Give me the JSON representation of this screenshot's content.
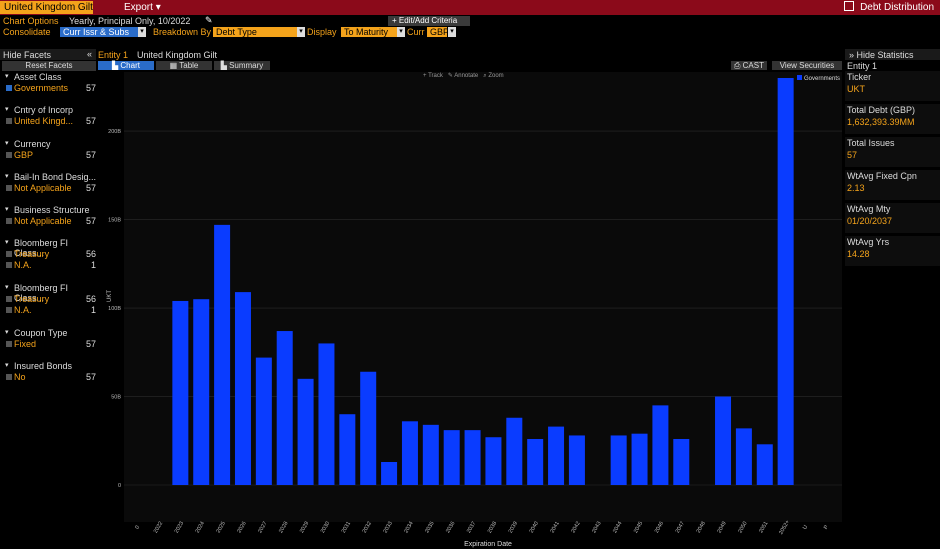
{
  "header": {
    "security": "United Kingdom Gilt",
    "export_label": "Export",
    "distribution_label": "Debt Distribution"
  },
  "options": {
    "chart_options_label": "Chart Options",
    "chart_options_value": "Yearly, Principal Only, 10/2022",
    "edit_criteria": "Edit/Add Criteria",
    "consolidate_label": "Consolidate",
    "consolidate_value": "Curr Issr & Subs",
    "breakdown_label": "Breakdown By",
    "breakdown_value": "Debt Type",
    "display_label": "Display",
    "display_value": "To Maturity",
    "curr_label": "Curr",
    "curr_value": "GBP"
  },
  "left": {
    "hide_facets": "Hide Facets",
    "collapse": "«",
    "reset": "Reset Facets",
    "facets": [
      {
        "title": "Asset Class",
        "items": [
          {
            "label": "Governments",
            "count": "57",
            "checked": true
          }
        ]
      },
      {
        "title": "Cntry of Incorp",
        "items": [
          {
            "label": "United Kingd...",
            "count": "57"
          }
        ]
      },
      {
        "title": "Currency",
        "items": [
          {
            "label": "GBP",
            "count": "57"
          }
        ]
      },
      {
        "title": "Bail-In Bond Desig...",
        "items": [
          {
            "label": "Not Applicable",
            "count": "57"
          }
        ]
      },
      {
        "title": "Business Structure",
        "items": [
          {
            "label": "Not Applicable",
            "count": "57"
          }
        ]
      },
      {
        "title": "Bloomberg FI Class...",
        "items": [
          {
            "label": "Treasury",
            "count": "56"
          },
          {
            "label": "N.A.",
            "count": "1"
          }
        ]
      },
      {
        "title": "Bloomberg FI Class...",
        "items": [
          {
            "label": "Treasury",
            "count": "56"
          },
          {
            "label": "N.A.",
            "count": "1"
          }
        ]
      },
      {
        "title": "Coupon Type",
        "items": [
          {
            "label": "Fixed",
            "count": "57"
          }
        ]
      },
      {
        "title": "Insured Bonds",
        "items": [
          {
            "label": "No",
            "count": "57"
          }
        ]
      }
    ]
  },
  "main": {
    "entity_label": "Entity 1",
    "entity_name": "United Kingdom Gilt",
    "tabs": [
      "Chart",
      "Table",
      "Summary"
    ],
    "tools": [
      "Track",
      "Annotate",
      "Zoom"
    ],
    "cast_label": "CAST",
    "view_securities": "View Securities",
    "legend": "Governments"
  },
  "right": {
    "hide_stats": "Hide Statistics",
    "entity": "Entity 1",
    "stats": [
      {
        "label": "Ticker",
        "value": "UKT"
      },
      {
        "label": "Total Debt (GBP)",
        "value": "1,632,393.39MM"
      },
      {
        "label": "Total Issues",
        "value": "57"
      },
      {
        "label": "WtAvg Fixed Cpn",
        "value": "2.13"
      },
      {
        "label": "WtAvg Mty",
        "value": "01/20/2037"
      },
      {
        "label": "WtAvg Yrs",
        "value": "14.28"
      }
    ]
  },
  "colors": {
    "accent": "#f4a31b",
    "bar": "#0a3cff",
    "red": "#8b0a1a"
  },
  "chart_data": {
    "type": "bar",
    "xlabel": "Expiration Date",
    "ylabel": "UKT",
    "ylim": [
      0,
      230
    ],
    "yticks": [
      0,
      50,
      100,
      150,
      200
    ],
    "ytick_labels": [
      "0",
      "50B",
      "100B",
      "150B",
      "200B"
    ],
    "categories": [
      "0",
      "2022",
      "2023",
      "2024",
      "2025",
      "2026",
      "2027",
      "2028",
      "2029",
      "2030",
      "2031",
      "2032",
      "2033",
      "2034",
      "2035",
      "2036",
      "2037",
      "2038",
      "2039",
      "2040",
      "2041",
      "2042",
      "2043",
      "2044",
      "2045",
      "2046",
      "2047",
      "2048",
      "2049",
      "2050",
      "2051",
      "2052+",
      "U",
      "P"
    ],
    "series": [
      {
        "name": "Governments",
        "values": [
          0,
          0,
          104,
          105,
          147,
          109,
          72,
          87,
          60,
          80,
          40,
          64,
          13,
          36,
          34,
          31,
          31,
          27,
          38,
          26,
          33,
          28,
          0,
          28,
          29,
          45,
          26,
          0,
          50,
          32,
          23,
          230,
          0,
          0
        ]
      }
    ]
  }
}
